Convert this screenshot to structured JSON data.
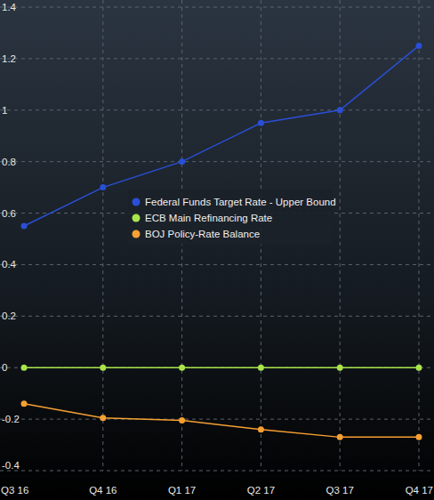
{
  "chart_data": {
    "type": "line",
    "categories": [
      "Q3 16",
      "Q4 16",
      "Q1 17",
      "Q2 17",
      "Q3 17",
      "Q4 17"
    ],
    "series": [
      {
        "name": "Federal Funds Target Rate - Upper Bound",
        "color": "#2a4fd6",
        "marker": "circle",
        "values": [
          0.55,
          0.7,
          0.8,
          0.95,
          1.0,
          1.25
        ]
      },
      {
        "name": "ECB Main Refinancing Rate",
        "color": "#a8e44a",
        "marker": "circle",
        "values": [
          0,
          0,
          0,
          0,
          0,
          0
        ]
      },
      {
        "name": "BOJ Policy-Rate Balance",
        "color": "#f6a033",
        "marker": "circle",
        "values": [
          -0.14,
          -0.195,
          -0.205,
          -0.24,
          -0.27,
          -0.27
        ]
      }
    ],
    "ylim": [
      -0.4,
      1.4
    ],
    "yticks": [
      -0.4,
      -0.2,
      0,
      0.2,
      0.4,
      0.6,
      0.8,
      1,
      1.2,
      1.4
    ],
    "grid": true,
    "legend": "center"
  }
}
